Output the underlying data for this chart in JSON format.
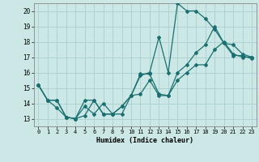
{
  "xlabel": "Humidex (Indice chaleur)",
  "xlim": [
    -0.5,
    23.5
  ],
  "ylim": [
    12.5,
    20.5
  ],
  "yticks": [
    13,
    14,
    15,
    16,
    17,
    18,
    19,
    20
  ],
  "xticks": [
    0,
    1,
    2,
    3,
    4,
    5,
    6,
    7,
    8,
    9,
    10,
    11,
    12,
    13,
    14,
    15,
    16,
    17,
    18,
    19,
    20,
    21,
    22,
    23
  ],
  "bg_color": "#cce8e6",
  "grid_color": "#aacfcc",
  "line_color": "#1a7070",
  "line1_x": [
    0,
    1,
    2,
    3,
    4,
    5,
    6,
    7,
    8,
    9,
    10,
    11,
    12,
    13,
    14,
    15,
    16,
    17,
    18,
    19,
    20,
    21,
    22,
    23
  ],
  "line1_y": [
    15.2,
    14.2,
    13.7,
    13.1,
    13.0,
    13.2,
    14.2,
    13.3,
    13.3,
    13.3,
    14.5,
    15.8,
    16.0,
    18.3,
    16.0,
    20.5,
    20.0,
    20.0,
    19.5,
    18.8,
    17.9,
    17.8,
    17.2,
    17.0
  ],
  "line2_x": [
    0,
    1,
    2,
    3,
    4,
    5,
    6,
    7,
    8,
    9,
    10,
    11,
    12,
    13,
    14,
    15,
    16,
    17,
    18,
    19,
    20,
    21,
    22,
    23
  ],
  "line2_y": [
    15.2,
    14.2,
    14.2,
    13.1,
    13.0,
    13.8,
    13.3,
    14.0,
    13.3,
    13.8,
    14.5,
    15.9,
    15.9,
    14.6,
    14.5,
    16.0,
    16.5,
    17.3,
    17.8,
    19.0,
    17.9,
    17.1,
    17.1,
    16.9
  ],
  "line3_x": [
    0,
    1,
    2,
    3,
    4,
    5,
    6,
    7,
    8,
    9,
    10,
    11,
    12,
    13,
    14,
    15,
    16,
    17,
    18,
    19,
    20,
    21,
    22,
    23
  ],
  "line3_y": [
    15.2,
    14.2,
    14.2,
    13.1,
    13.0,
    14.2,
    14.2,
    13.3,
    13.3,
    13.8,
    14.5,
    14.6,
    15.5,
    14.5,
    14.5,
    15.5,
    16.0,
    16.5,
    16.5,
    17.5,
    18.0,
    17.2,
    17.0,
    17.0
  ]
}
